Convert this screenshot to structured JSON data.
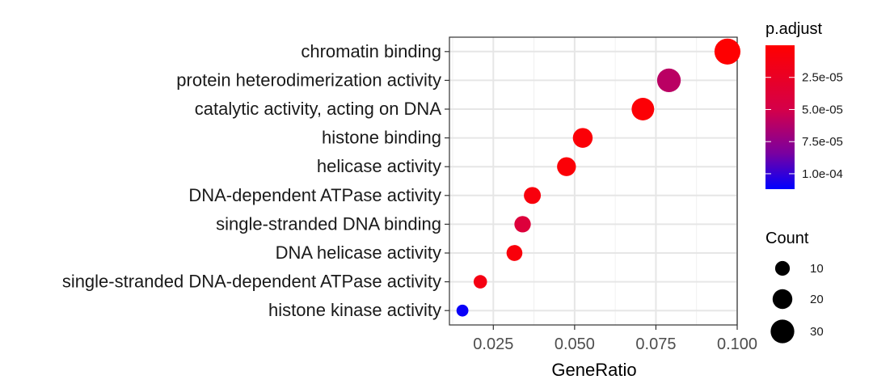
{
  "chart_data": {
    "type": "scatter",
    "xlabel": "GeneRatio",
    "ylabel": "",
    "xlim": [
      0.0115,
      0.1
    ],
    "x_ticks": [
      0.025,
      0.05,
      0.075,
      0.1
    ],
    "x_tick_labels": [
      "0.025",
      "0.050",
      "0.075",
      "0.100"
    ],
    "grid": true,
    "categories": [
      "chromatin binding",
      "protein heterodimerization activity",
      "catalytic activity, acting on DNA",
      "histone binding",
      "helicase activity",
      "DNA-dependent ATPase activity",
      "single-stranded DNA binding",
      "DNA helicase activity",
      "single-stranded DNA-dependent ATPase activity",
      "histone kinase activity"
    ],
    "points": [
      {
        "category": "chromatin binding",
        "x": 0.097,
        "count": 37,
        "p_adjust": 1e-06
      },
      {
        "category": "protein heterodimerization activity",
        "x": 0.079,
        "count": 30,
        "p_adjust": 6e-05
      },
      {
        "category": "catalytic activity, acting on DNA",
        "x": 0.071,
        "count": 27,
        "p_adjust": 4e-06
      },
      {
        "category": "histone binding",
        "x": 0.0525,
        "count": 20,
        "p_adjust": 5e-06
      },
      {
        "category": "helicase activity",
        "x": 0.0475,
        "count": 18,
        "p_adjust": 5e-06
      },
      {
        "category": "DNA-dependent ATPase activity",
        "x": 0.037,
        "count": 14,
        "p_adjust": 8e-06
      },
      {
        "category": "single-stranded DNA binding",
        "x": 0.034,
        "count": 13,
        "p_adjust": 4e-05
      },
      {
        "category": "DNA helicase activity",
        "x": 0.0315,
        "count": 12,
        "p_adjust": 7e-06
      },
      {
        "category": "single-stranded DNA-dependent ATPase activity",
        "x": 0.021,
        "count": 8,
        "p_adjust": 1.2e-05
      },
      {
        "category": "histone kinase activity",
        "x": 0.0155,
        "count": 6,
        "p_adjust": 0.00011
      }
    ],
    "color_legend": {
      "title": "p.adjust",
      "low_color": "#FF0000",
      "high_color": "#0000FF",
      "range": [
        0.0,
        0.000112
      ],
      "ticks": [
        2.5e-05,
        5e-05,
        7.5e-05,
        0.0001
      ],
      "tick_labels": [
        "2.5e-05",
        "5.0e-05",
        "7.5e-05",
        "1.0e-04"
      ]
    },
    "size_legend": {
      "title": "Count",
      "values": [
        10,
        20,
        30
      ],
      "labels": [
        "10",
        "20",
        "30"
      ]
    },
    "legend_position": "right"
  }
}
